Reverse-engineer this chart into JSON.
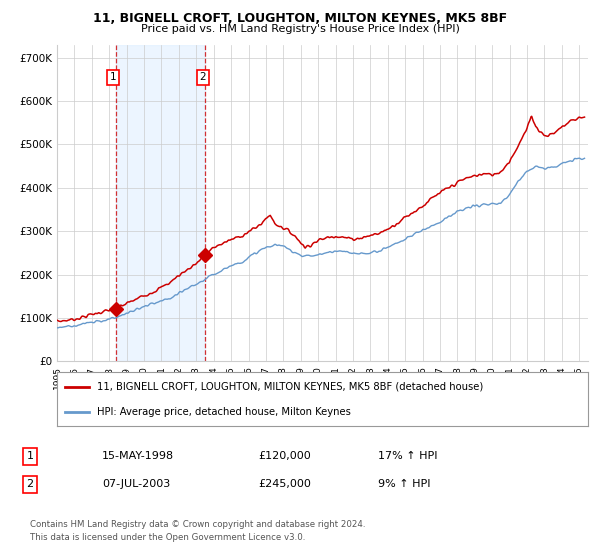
{
  "title1": "11, BIGNELL CROFT, LOUGHTON, MILTON KEYNES, MK5 8BF",
  "title2": "Price paid vs. HM Land Registry's House Price Index (HPI)",
  "ylabel_ticks": [
    "£0",
    "£100K",
    "£200K",
    "£300K",
    "£400K",
    "£500K",
    "£600K",
    "£700K"
  ],
  "ytick_values": [
    0,
    100000,
    200000,
    300000,
    400000,
    500000,
    600000,
    700000
  ],
  "ylim": [
    0,
    730000
  ],
  "xlim_start": 1995.0,
  "xlim_end": 2025.5,
  "sale1_x": 1998.37,
  "sale1_y": 120000,
  "sale2_x": 2003.52,
  "sale2_y": 245000,
  "legend_line1": "11, BIGNELL CROFT, LOUGHTON, MILTON KEYNES, MK5 8BF (detached house)",
  "legend_line2": "HPI: Average price, detached house, Milton Keynes",
  "table_row1": [
    "1",
    "15-MAY-1998",
    "£120,000",
    "17% ↑ HPI"
  ],
  "table_row2": [
    "2",
    "07-JUL-2003",
    "£245,000",
    "9% ↑ HPI"
  ],
  "footer1": "Contains HM Land Registry data © Crown copyright and database right 2024.",
  "footer2": "This data is licensed under the Open Government Licence v3.0.",
  "line_color_red": "#cc0000",
  "line_color_blue": "#6699cc",
  "shade_color": "#ddeeff",
  "bg_color": "#ffffff",
  "grid_color": "#cccccc",
  "sale_marker_color": "#cc0000",
  "dashed_line_color": "#cc0000",
  "xtick_years": [
    1995,
    1996,
    1997,
    1998,
    1999,
    2000,
    2001,
    2002,
    2003,
    2004,
    2005,
    2006,
    2007,
    2008,
    2009,
    2010,
    2011,
    2012,
    2013,
    2014,
    2015,
    2016,
    2017,
    2018,
    2019,
    2020,
    2021,
    2022,
    2023,
    2024,
    2025
  ],
  "hpi_years": [
    1995,
    1995.5,
    1996,
    1996.5,
    1997,
    1997.5,
    1998,
    1998.5,
    1999,
    1999.5,
    2000,
    2000.5,
    2001,
    2001.5,
    2002,
    2002.5,
    2003,
    2003.5,
    2004,
    2004.5,
    2005,
    2005.5,
    2006,
    2006.5,
    2007,
    2007.5,
    2008,
    2008.5,
    2009,
    2009.5,
    2010,
    2010.5,
    2011,
    2011.5,
    2012,
    2012.5,
    2013,
    2013.5,
    2014,
    2014.5,
    2015,
    2015.5,
    2016,
    2016.5,
    2017,
    2017.5,
    2018,
    2018.5,
    2019,
    2019.5,
    2020,
    2020.5,
    2021,
    2021.5,
    2022,
    2022.5,
    2023,
    2023.5,
    2024,
    2024.5,
    2025
  ],
  "hpi_vals": [
    78000,
    80000,
    82000,
    86000,
    89000,
    93000,
    97000,
    103000,
    110000,
    118000,
    126000,
    132000,
    138000,
    145000,
    155000,
    168000,
    178000,
    188000,
    200000,
    212000,
    220000,
    228000,
    238000,
    252000,
    262000,
    268000,
    265000,
    255000,
    245000,
    242000,
    246000,
    250000,
    254000,
    252000,
    248000,
    248000,
    250000,
    255000,
    263000,
    272000,
    282000,
    292000,
    303000,
    312000,
    322000,
    334000,
    344000,
    352000,
    358000,
    362000,
    360000,
    365000,
    385000,
    415000,
    440000,
    450000,
    445000,
    448000,
    455000,
    462000,
    468000
  ],
  "prop_years": [
    1995,
    1995.5,
    1996,
    1996.5,
    1997,
    1997.5,
    1998,
    1998.37,
    1998.5,
    1999,
    1999.5,
    2000,
    2000.5,
    2001,
    2001.5,
    2002,
    2002.5,
    2003,
    2003.52,
    2004,
    2004.5,
    2005,
    2005.5,
    2006,
    2006.5,
    2007,
    2007.25,
    2007.5,
    2008,
    2008.5,
    2009,
    2009.25,
    2009.5,
    2010,
    2010.5,
    2011,
    2011.5,
    2012,
    2012.5,
    2013,
    2013.5,
    2014,
    2014.5,
    2015,
    2015.5,
    2016,
    2016.5,
    2017,
    2017.5,
    2018,
    2018.5,
    2019,
    2019.5,
    2020,
    2020.5,
    2021,
    2021.5,
    2022,
    2022.25,
    2022.5,
    2023,
    2023.5,
    2024,
    2024.5,
    2025
  ],
  "prop_vals": [
    92000,
    94000,
    97000,
    102000,
    108000,
    113000,
    117000,
    120000,
    124000,
    133000,
    142000,
    152000,
    160000,
    170000,
    182000,
    198000,
    212000,
    226000,
    245000,
    262000,
    272000,
    280000,
    288000,
    298000,
    310000,
    328000,
    338000,
    318000,
    308000,
    295000,
    275000,
    262000,
    268000,
    278000,
    285000,
    290000,
    285000,
    282000,
    285000,
    290000,
    295000,
    305000,
    318000,
    332000,
    345000,
    358000,
    374000,
    388000,
    400000,
    412000,
    422000,
    428000,
    432000,
    430000,
    438000,
    462000,
    498000,
    535000,
    568000,
    542000,
    520000,
    525000,
    540000,
    555000,
    562000
  ]
}
